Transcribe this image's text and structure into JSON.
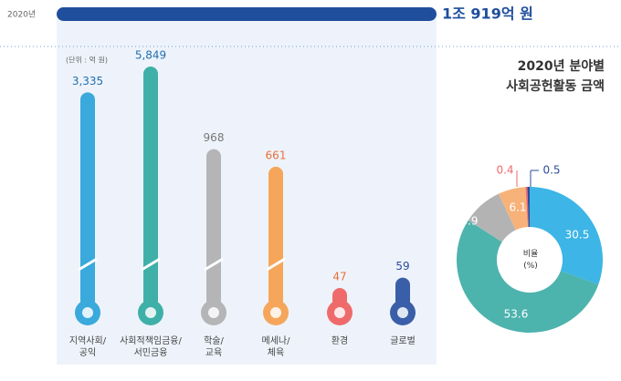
{
  "header": {
    "year": "2020년",
    "total": "1조 919억 원"
  },
  "chart_data": [
    {
      "type": "bar",
      "unit": "(단위 : 억 원)",
      "categories": [
        "지역사회/\n공익",
        "사회적책임금융/\n서민금융",
        "학술/\n교육",
        "메세나/\n체육",
        "환경",
        "글로벌"
      ],
      "values": [
        3335,
        5849,
        968,
        661,
        47,
        59
      ],
      "value_labels": [
        "3,335",
        "5,849",
        "968",
        "661",
        "47",
        "59"
      ],
      "colors": [
        "#3aa9dc",
        "#3fb0a8",
        "#b5b5b8",
        "#f5a65b",
        "#ef6b6b",
        "#3a5fa8"
      ]
    },
    {
      "type": "pie",
      "title": "2020년 분야별\n사회공헌활동 금액",
      "center_label": "비율\n(%)",
      "categories": [
        "지역사회/공익",
        "사회적책임금융/서민금융",
        "학술/교육",
        "메세나/체육",
        "환경",
        "글로벌"
      ],
      "values": [
        30.5,
        53.6,
        8.9,
        6.1,
        0.4,
        0.5
      ],
      "colors": [
        "#3db5e6",
        "#4db3ad",
        "#b3b3b3",
        "#f7b27a",
        "#ef6b6b",
        "#2d4b9a"
      ]
    }
  ]
}
